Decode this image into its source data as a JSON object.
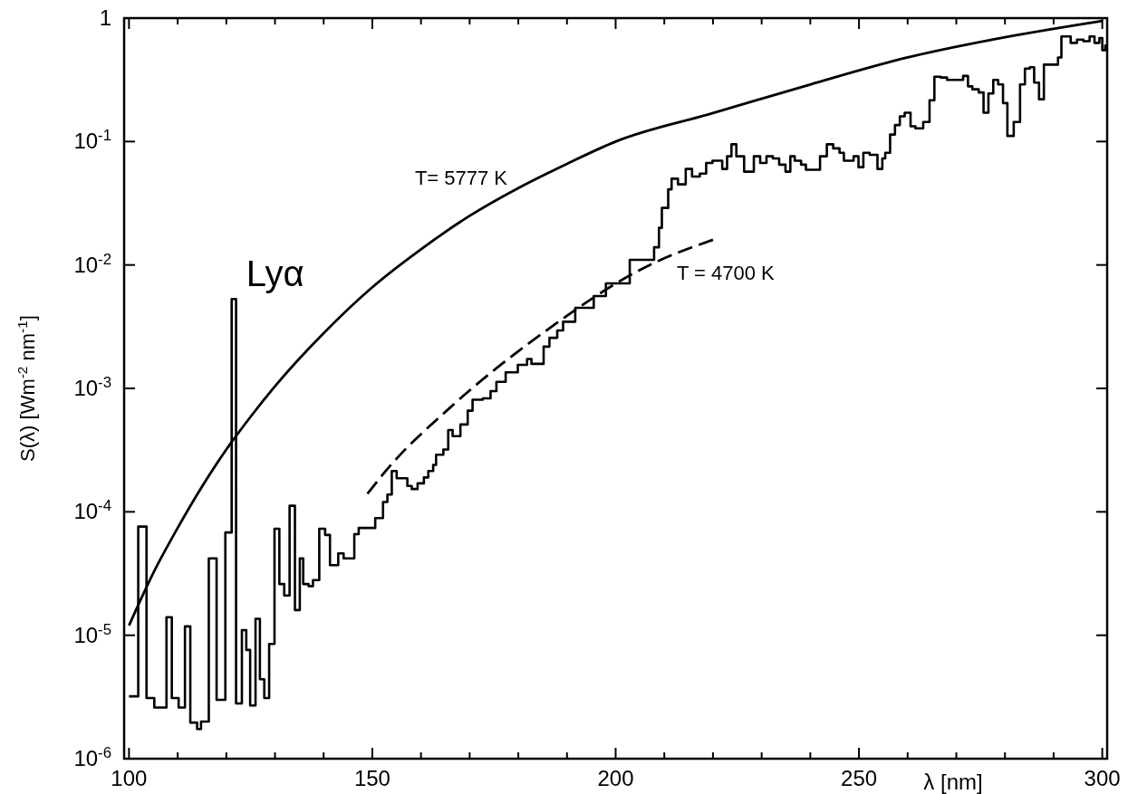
{
  "chart_data": {
    "type": "step",
    "xlabel": "λ [nm]",
    "ylabel": "S(λ) [Wm$^{-2}$ nm$^{-1}$]",
    "log": "y",
    "grid": false,
    "xlim": [
      99,
      301
    ],
    "xticks": [
      100,
      {
        "value": 110,
        "label": null
      },
      {
        "value": 120,
        "label": null
      },
      {
        "value": 130,
        "label": null
      },
      {
        "value": 140,
        "label": null
      },
      150,
      {
        "value": 160,
        "label": null
      },
      {
        "value": 170,
        "label": null
      },
      {
        "value": 180,
        "label": null
      },
      {
        "value": 190,
        "label": null
      },
      200,
      {
        "value": 210,
        "label": null
      },
      {
        "value": 220,
        "label": null
      },
      {
        "value": 230,
        "label": null
      },
      {
        "value": 240,
        "label": null
      },
      250,
      {
        "value": 260,
        "label": null
      },
      {
        "value": 270,
        "label": null
      },
      {
        "value": 280,
        "label": null
      },
      {
        "value": 290,
        "label": null
      },
      300
    ],
    "ylim": [
      1e-06,
      1
    ],
    "yticks": [
      {
        "value": 1e-06,
        "label": "10$^{-6}$"
      },
      {
        "value": 1e-05,
        "label": "10$^{-5}$"
      },
      {
        "value": 0.0001,
        "label": "10$^{-4}$"
      },
      {
        "value": 0.001,
        "label": "10$^{-3}$"
      },
      {
        "value": 0.01,
        "label": "10$^{-2}$"
      },
      {
        "value": 0.1,
        "label": "10$^{-1}$"
      },
      1
    ],
    "annotations": [
      {
        "text": "Lyα",
        "x": 121.5,
        "y": 0.0053
      }
    ],
    "series": [
      {
        "color": "#000000",
        "x": [
          100,
          101.9,
          103.6,
          105.2,
          107.7,
          108.8,
          110.2,
          111.5,
          112.6,
          114.0,
          114.8,
          116.4,
          118.0,
          119.8,
          121.1,
          122.0,
          123.2,
          124.1,
          124.9,
          126.0,
          126.9,
          127.8,
          128.8,
          129.9,
          130.9,
          131.9,
          133.0,
          134.1,
          135.1,
          135.8,
          136.9,
          137.8,
          139.1,
          140.3,
          141.3,
          143.0,
          144.1,
          146.3,
          147.2,
          150.6,
          152.2,
          153.1,
          154.0,
          155.0,
          157.2,
          158.1,
          159.3,
          160.6,
          161.5,
          162.5,
          163.1,
          164.6,
          165.6,
          166.5,
          168.1,
          169.6,
          170.6,
          172.7,
          174.3,
          175.5,
          177.4,
          179.9,
          181.8,
          182.7,
          185.2,
          186.4,
          188.0,
          189.2,
          191.7,
          195.5,
          198.0,
          202.9,
          207.9,
          208.9,
          209.5,
          210.8,
          211.5,
          212.8,
          214.4,
          215.7,
          217.3,
          218.6,
          219.9,
          221.9,
          222.9,
          223.8,
          224.8,
          226.4,
          228.4,
          229.7,
          231.0,
          232.3,
          233.6,
          234.9,
          235.9,
          236.8,
          238.1,
          239.1,
          242.0,
          243.4,
          244.7,
          246.0,
          246.9,
          248.9,
          249.9,
          250.9,
          252.2,
          253.8,
          254.8,
          255.4,
          256.4,
          257.4,
          258.4,
          259.4,
          260.6,
          261.6,
          263.2,
          264.5,
          265.5,
          266.8,
          268.1,
          271.4,
          272.4,
          273.3,
          274.6,
          275.6,
          276.6,
          277.6,
          278.6,
          279.6,
          280.5,
          281.8,
          283.1,
          284.1,
          285.1,
          286.0,
          287.0,
          288.0,
          290.9,
          291.6,
          293.5,
          294.8,
          296.1,
          297.4,
          298.4,
          299.4,
          300.0,
          300.6,
          301
        ],
        "values": [
          3.2e-06,
          7.6e-05,
          3.1e-06,
          2.6e-06,
          1.4e-05,
          3.1e-06,
          2.6e-06,
          1.18e-05,
          1.96e-06,
          1.74e-06,
          2e-06,
          4.2e-05,
          3e-06,
          6.8e-05,
          0.0053,
          2.8e-06,
          1.1e-05,
          7.6e-06,
          2.7e-06,
          1.36e-05,
          4.4e-06,
          3.1e-06,
          8.5e-06,
          7.3e-05,
          2.6e-05,
          2.1e-05,
          0.000112,
          1.6e-05,
          4.2e-05,
          2.6e-05,
          2.5e-05,
          2.8e-05,
          7.3e-05,
          6.5e-05,
          3.7e-05,
          4.6e-05,
          4.2e-05,
          6.6e-05,
          7.4e-05,
          8.9e-05,
          0.00012,
          0.000138,
          0.000214,
          0.000187,
          0.000162,
          0.000153,
          0.00017,
          0.00019,
          0.000214,
          0.00024,
          0.00029,
          0.00032,
          0.00046,
          0.00041,
          0.00051,
          0.00066,
          0.00081,
          0.00083,
          0.00095,
          0.00113,
          0.00135,
          0.00155,
          0.00173,
          0.00158,
          0.00218,
          0.00257,
          0.00295,
          0.00347,
          0.0045,
          0.0056,
          0.0071,
          0.011,
          0.0139,
          0.02,
          0.029,
          0.041,
          0.05,
          0.045,
          0.06,
          0.052,
          0.055,
          0.067,
          0.07,
          0.06,
          0.076,
          0.095,
          0.076,
          0.057,
          0.076,
          0.067,
          0.076,
          0.073,
          0.065,
          0.057,
          0.076,
          0.07,
          0.065,
          0.059,
          0.076,
          0.095,
          0.088,
          0.081,
          0.07,
          0.076,
          0.062,
          0.081,
          0.078,
          0.06,
          0.073,
          0.081,
          0.114,
          0.136,
          0.16,
          0.171,
          0.133,
          0.128,
          0.144,
          0.216,
          0.335,
          0.33,
          0.316,
          0.34,
          0.28,
          0.265,
          0.25,
          0.171,
          0.245,
          0.316,
          0.29,
          0.205,
          0.111,
          0.144,
          0.29,
          0.39,
          0.4,
          0.3,
          0.22,
          0.42,
          0.48,
          0.71,
          0.63,
          0.67,
          0.65,
          0.71,
          0.63,
          0.69,
          0.55,
          0.6,
          0.6
        ]
      },
      {
        "type": "line",
        "name": "T= 5777 K",
        "color": "#000000",
        "line_style": "solid",
        "x": [
          100,
          105,
          110,
          115,
          120,
          125,
          130,
          140,
          150,
          160,
          170,
          180,
          190,
          200,
          220,
          240,
          260,
          280,
          300
        ],
        "values": [
          1.2e-05,
          3.2e-05,
          7.4e-05,
          0.00016,
          0.00032,
          0.00059,
          0.00104,
          0.0028,
          0.0066,
          0.0134,
          0.025,
          0.042,
          0.066,
          0.1,
          0.17,
          0.29,
          0.48,
          0.7,
          0.95
        ]
      },
      {
        "type": "line",
        "name": "T = 4700 K",
        "color": "#000000",
        "line_style": "dashed",
        "x": [
          149,
          153,
          166,
          185,
          207,
          220
        ],
        "values": [
          0.00014,
          0.00022,
          0.0007,
          0.0028,
          0.01,
          0.016
        ]
      }
    ]
  }
}
